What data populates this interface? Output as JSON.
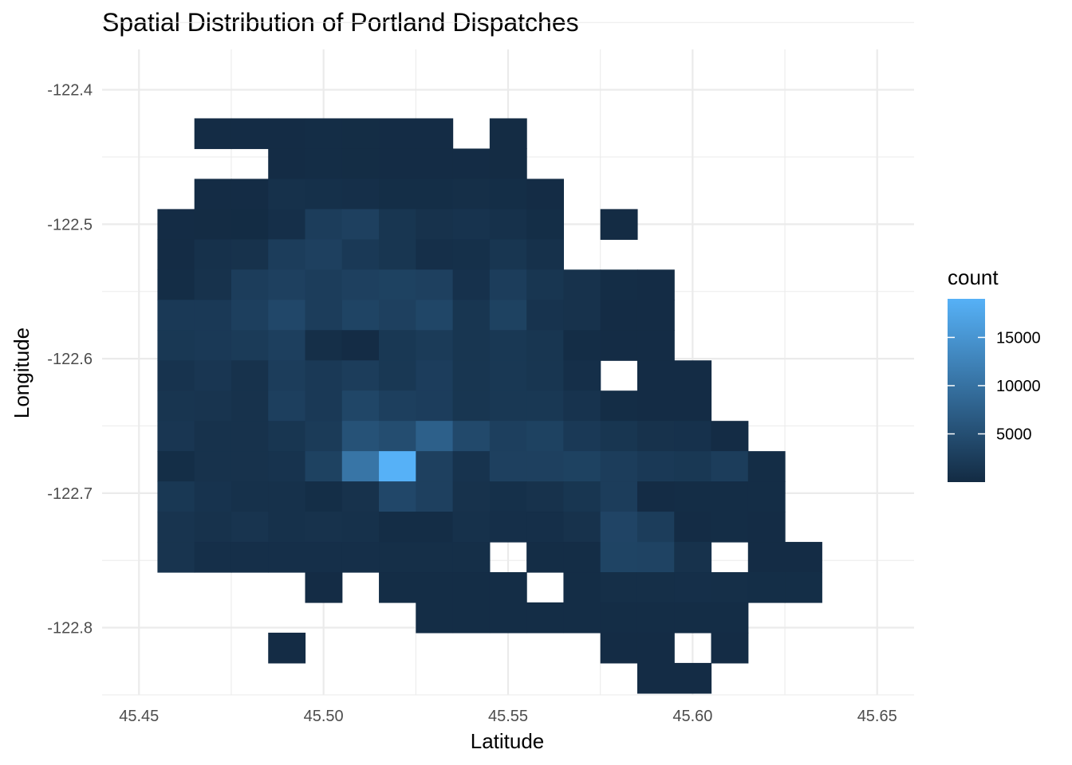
{
  "chart_data": {
    "type": "heatmap",
    "title": "Spatial Distribution of Portland Dispatches",
    "xlabel": "Latitude",
    "ylabel": "Longitude",
    "xlim": [
      45.44,
      45.66
    ],
    "ylim": [
      -122.85,
      -122.37
    ],
    "x_ticks": [
      "45.45",
      "45.50",
      "45.55",
      "45.60",
      "45.65"
    ],
    "y_ticks": [
      "-122.4",
      "-122.5",
      "-122.6",
      "-122.7",
      "-122.8"
    ],
    "grid": true,
    "bin_width_x": 0.01,
    "bin_height_y": 0.0225,
    "legend": {
      "title": "count",
      "placement": "right",
      "breaks": [
        "5000",
        "10000",
        "15000"
      ],
      "min": 0,
      "max": 19000
    },
    "colors": {
      "low": "#132B43",
      "high": "#56B1F7",
      "grid": "#ebebeb"
    },
    "cells": [
      [
        45.47,
        -122.4325,
        200
      ],
      [
        45.48,
        -122.4325,
        200
      ],
      [
        45.49,
        -122.4325,
        200
      ],
      [
        45.5,
        -122.4325,
        300
      ],
      [
        45.51,
        -122.4325,
        250
      ],
      [
        45.52,
        -122.4325,
        200
      ],
      [
        45.53,
        -122.4325,
        200
      ],
      [
        45.55,
        -122.4325,
        150
      ],
      [
        45.49,
        -122.455,
        200
      ],
      [
        45.5,
        -122.455,
        300
      ],
      [
        45.51,
        -122.455,
        250
      ],
      [
        45.52,
        -122.455,
        200
      ],
      [
        45.53,
        -122.455,
        200
      ],
      [
        45.54,
        -122.455,
        200
      ],
      [
        45.55,
        -122.455,
        150
      ],
      [
        45.47,
        -122.4775,
        200
      ],
      [
        45.48,
        -122.4775,
        200
      ],
      [
        45.49,
        -122.4775,
        800
      ],
      [
        45.5,
        -122.4775,
        700
      ],
      [
        45.51,
        -122.4775,
        600
      ],
      [
        45.52,
        -122.4775,
        400
      ],
      [
        45.53,
        -122.4775,
        400
      ],
      [
        45.54,
        -122.4775,
        500
      ],
      [
        45.55,
        -122.4775,
        400
      ],
      [
        45.56,
        -122.4775,
        200
      ],
      [
        45.46,
        -122.5,
        200
      ],
      [
        45.47,
        -122.5,
        150
      ],
      [
        45.48,
        -122.5,
        100
      ],
      [
        45.49,
        -122.5,
        600
      ],
      [
        45.5,
        -122.5,
        2500
      ],
      [
        45.51,
        -122.5,
        3000
      ],
      [
        45.52,
        -122.5,
        1500
      ],
      [
        45.53,
        -122.5,
        1000
      ],
      [
        45.54,
        -122.5,
        1200
      ],
      [
        45.55,
        -122.5,
        800
      ],
      [
        45.56,
        -122.5,
        400
      ],
      [
        45.58,
        -122.5,
        150
      ],
      [
        45.46,
        -122.5225,
        200
      ],
      [
        45.47,
        -122.5225,
        800
      ],
      [
        45.48,
        -122.5225,
        1000
      ],
      [
        45.49,
        -122.5225,
        2500
      ],
      [
        45.5,
        -122.5225,
        3000
      ],
      [
        45.51,
        -122.5225,
        2000
      ],
      [
        45.52,
        -122.5225,
        1500
      ],
      [
        45.53,
        -122.5225,
        600
      ],
      [
        45.54,
        -122.5225,
        700
      ],
      [
        45.55,
        -122.5225,
        1500
      ],
      [
        45.56,
        -122.5225,
        800
      ],
      [
        45.46,
        -122.545,
        300
      ],
      [
        45.47,
        -122.545,
        1000
      ],
      [
        45.48,
        -122.545,
        2500
      ],
      [
        45.49,
        -122.545,
        3000
      ],
      [
        45.5,
        -122.545,
        2500
      ],
      [
        45.51,
        -122.545,
        3000
      ],
      [
        45.52,
        -122.545,
        3200
      ],
      [
        45.53,
        -122.545,
        3000
      ],
      [
        45.54,
        -122.545,
        900
      ],
      [
        45.55,
        -122.545,
        2500
      ],
      [
        45.56,
        -122.545,
        1500
      ],
      [
        45.57,
        -122.545,
        1000
      ],
      [
        45.58,
        -122.545,
        300
      ],
      [
        45.59,
        -122.545,
        200
      ],
      [
        45.46,
        -122.5675,
        2000
      ],
      [
        45.47,
        -122.5675,
        2000
      ],
      [
        45.48,
        -122.5675,
        2800
      ],
      [
        45.49,
        -122.5675,
        4000
      ],
      [
        45.5,
        -122.5675,
        2500
      ],
      [
        45.51,
        -122.5675,
        3500
      ],
      [
        45.52,
        -122.5675,
        3000
      ],
      [
        45.53,
        -122.5675,
        3800
      ],
      [
        45.54,
        -122.5675,
        1500
      ],
      [
        45.55,
        -122.5675,
        3200
      ],
      [
        45.56,
        -122.5675,
        1200
      ],
      [
        45.57,
        -122.5675,
        1000
      ],
      [
        45.58,
        -122.5675,
        200
      ],
      [
        45.59,
        -122.5675,
        200
      ],
      [
        45.46,
        -122.59,
        1800
      ],
      [
        45.47,
        -122.59,
        2000
      ],
      [
        45.48,
        -122.59,
        2200
      ],
      [
        45.49,
        -122.59,
        2800
      ],
      [
        45.5,
        -122.59,
        500
      ],
      [
        45.51,
        -122.59,
        200
      ],
      [
        45.52,
        -122.59,
        1800
      ],
      [
        45.53,
        -122.59,
        2200
      ],
      [
        45.54,
        -122.59,
        1500
      ],
      [
        45.55,
        -122.59,
        1800
      ],
      [
        45.56,
        -122.59,
        1500
      ],
      [
        45.57,
        -122.59,
        300
      ],
      [
        45.58,
        -122.59,
        200
      ],
      [
        45.59,
        -122.59,
        200
      ],
      [
        45.46,
        -122.6125,
        1200
      ],
      [
        45.47,
        -122.6125,
        1600
      ],
      [
        45.48,
        -122.6125,
        1000
      ],
      [
        45.49,
        -122.6125,
        2500
      ],
      [
        45.5,
        -122.6125,
        2000
      ],
      [
        45.51,
        -122.6125,
        2500
      ],
      [
        45.52,
        -122.6125,
        1800
      ],
      [
        45.53,
        -122.6125,
        2600
      ],
      [
        45.54,
        -122.6125,
        1500
      ],
      [
        45.55,
        -122.6125,
        1800
      ],
      [
        45.56,
        -122.6125,
        1500
      ],
      [
        45.57,
        -122.6125,
        600
      ],
      [
        45.59,
        -122.6125,
        200
      ],
      [
        45.6,
        -122.6125,
        200
      ],
      [
        45.46,
        -122.635,
        1400
      ],
      [
        45.47,
        -122.635,
        1300
      ],
      [
        45.48,
        -122.635,
        1000
      ],
      [
        45.49,
        -122.635,
        2800
      ],
      [
        45.5,
        -122.635,
        2000
      ],
      [
        45.51,
        -122.635,
        3800
      ],
      [
        45.52,
        -122.635,
        2800
      ],
      [
        45.53,
        -122.635,
        2600
      ],
      [
        45.54,
        -122.635,
        1500
      ],
      [
        45.55,
        -122.635,
        1800
      ],
      [
        45.56,
        -122.635,
        1800
      ],
      [
        45.57,
        -122.635,
        1200
      ],
      [
        45.58,
        -122.635,
        300
      ],
      [
        45.59,
        -122.635,
        200
      ],
      [
        45.6,
        -122.635,
        200
      ],
      [
        45.46,
        -122.6575,
        1600
      ],
      [
        45.47,
        -122.6575,
        1000
      ],
      [
        45.48,
        -122.6575,
        1000
      ],
      [
        45.49,
        -122.6575,
        1500
      ],
      [
        45.5,
        -122.6575,
        2200
      ],
      [
        45.51,
        -122.6575,
        5500
      ],
      [
        45.52,
        -122.6575,
        4800
      ],
      [
        45.53,
        -122.6575,
        7500
      ],
      [
        45.54,
        -122.6575,
        4200
      ],
      [
        45.55,
        -122.6575,
        2800
      ],
      [
        45.56,
        -122.6575,
        3200
      ],
      [
        45.57,
        -122.6575,
        2000
      ],
      [
        45.58,
        -122.6575,
        1500
      ],
      [
        45.59,
        -122.6575,
        1000
      ],
      [
        45.6,
        -122.6575,
        900
      ],
      [
        45.61,
        -122.6575,
        200
      ],
      [
        45.46,
        -122.68,
        400
      ],
      [
        45.47,
        -122.68,
        1000
      ],
      [
        45.48,
        -122.68,
        1000
      ],
      [
        45.49,
        -122.68,
        1200
      ],
      [
        45.5,
        -122.68,
        3200
      ],
      [
        45.51,
        -122.68,
        10500
      ],
      [
        45.52,
        -122.68,
        19000
      ],
      [
        45.53,
        -122.68,
        3000
      ],
      [
        45.54,
        -122.68,
        1200
      ],
      [
        45.55,
        -122.68,
        3000
      ],
      [
        45.56,
        -122.68,
        3000
      ],
      [
        45.57,
        -122.68,
        3200
      ],
      [
        45.58,
        -122.68,
        2500
      ],
      [
        45.59,
        -122.68,
        2000
      ],
      [
        45.6,
        -122.68,
        1800
      ],
      [
        45.61,
        -122.68,
        2500
      ],
      [
        45.62,
        -122.68,
        300
      ],
      [
        45.46,
        -122.7025,
        1800
      ],
      [
        45.47,
        -122.7025,
        1200
      ],
      [
        45.48,
        -122.7025,
        800
      ],
      [
        45.49,
        -122.7025,
        800
      ],
      [
        45.5,
        -122.7025,
        400
      ],
      [
        45.51,
        -122.7025,
        1000
      ],
      [
        45.52,
        -122.7025,
        4000
      ],
      [
        45.53,
        -122.7025,
        3000
      ],
      [
        45.54,
        -122.7025,
        1000
      ],
      [
        45.55,
        -122.7025,
        700
      ],
      [
        45.56,
        -122.7025,
        1000
      ],
      [
        45.57,
        -122.7025,
        1500
      ],
      [
        45.58,
        -122.7025,
        2500
      ],
      [
        45.59,
        -122.7025,
        200
      ],
      [
        45.6,
        -122.7025,
        300
      ],
      [
        45.61,
        -122.7025,
        300
      ],
      [
        45.62,
        -122.7025,
        300
      ],
      [
        45.46,
        -122.725,
        1300
      ],
      [
        45.47,
        -122.725,
        1000
      ],
      [
        45.48,
        -122.725,
        1300
      ],
      [
        45.49,
        -122.725,
        800
      ],
      [
        45.5,
        -122.725,
        1000
      ],
      [
        45.51,
        -122.725,
        800
      ],
      [
        45.52,
        -122.725,
        300
      ],
      [
        45.53,
        -122.725,
        300
      ],
      [
        45.54,
        -122.725,
        800
      ],
      [
        45.55,
        -122.725,
        600
      ],
      [
        45.56,
        -122.725,
        600
      ],
      [
        45.57,
        -122.725,
        1000
      ],
      [
        45.58,
        -122.725,
        3600
      ],
      [
        45.59,
        -122.725,
        2500
      ],
      [
        45.6,
        -122.725,
        200
      ],
      [
        45.61,
        -122.725,
        300
      ],
      [
        45.62,
        -122.725,
        200
      ],
      [
        45.46,
        -122.7475,
        1300
      ],
      [
        45.47,
        -122.7475,
        600
      ],
      [
        45.48,
        -122.7475,
        600
      ],
      [
        45.49,
        -122.7475,
        600
      ],
      [
        45.5,
        -122.7475,
        600
      ],
      [
        45.51,
        -122.7475,
        600
      ],
      [
        45.52,
        -122.7475,
        500
      ],
      [
        45.53,
        -122.7475,
        500
      ],
      [
        45.54,
        -122.7475,
        500
      ],
      [
        45.56,
        -122.7475,
        300
      ],
      [
        45.57,
        -122.7475,
        300
      ],
      [
        45.58,
        -122.7475,
        3500
      ],
      [
        45.59,
        -122.7475,
        3400
      ],
      [
        45.6,
        -122.7475,
        1000
      ],
      [
        45.62,
        -122.7475,
        200
      ],
      [
        45.63,
        -122.7475,
        200
      ],
      [
        45.5,
        -122.77,
        200
      ],
      [
        45.52,
        -122.77,
        300
      ],
      [
        45.53,
        -122.77,
        300
      ],
      [
        45.54,
        -122.77,
        300
      ],
      [
        45.55,
        -122.77,
        300
      ],
      [
        45.57,
        -122.77,
        300
      ],
      [
        45.58,
        -122.77,
        500
      ],
      [
        45.59,
        -122.77,
        500
      ],
      [
        45.6,
        -122.77,
        600
      ],
      [
        45.61,
        -122.77,
        500
      ],
      [
        45.62,
        -122.77,
        400
      ],
      [
        45.63,
        -122.77,
        400
      ],
      [
        45.53,
        -122.7925,
        300
      ],
      [
        45.54,
        -122.7925,
        300
      ],
      [
        45.55,
        -122.7925,
        300
      ],
      [
        45.56,
        -122.7925,
        300
      ],
      [
        45.57,
        -122.7925,
        300
      ],
      [
        45.58,
        -122.7925,
        300
      ],
      [
        45.59,
        -122.7925,
        300
      ],
      [
        45.6,
        -122.7925,
        300
      ],
      [
        45.61,
        -122.7925,
        300
      ],
      [
        45.49,
        -122.815,
        200
      ],
      [
        45.58,
        -122.815,
        200
      ],
      [
        45.59,
        -122.815,
        200
      ],
      [
        45.61,
        -122.815,
        200
      ],
      [
        45.59,
        -122.8375,
        200
      ],
      [
        45.6,
        -122.8375,
        200
      ]
    ]
  }
}
